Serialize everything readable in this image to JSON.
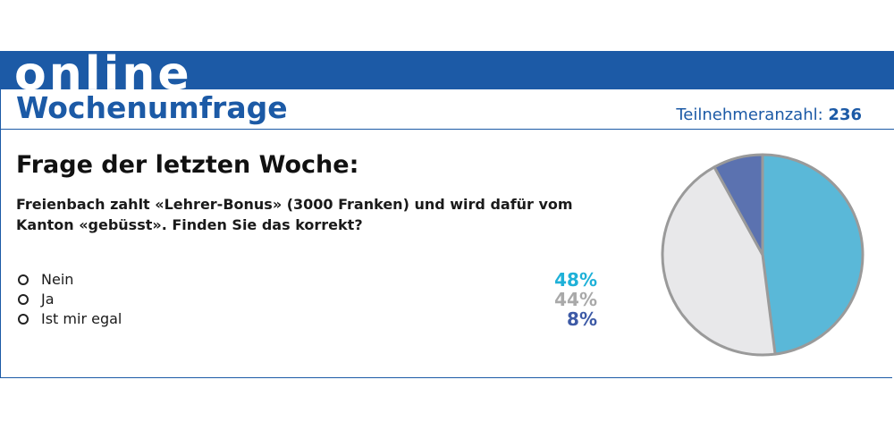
{
  "header": {
    "brand": "online",
    "title": "Wochenumfrage",
    "participants_label": "Teilnehmeranzahl:",
    "participants_count": "236"
  },
  "poll": {
    "heading": "Frage der letzten Woche:",
    "question": "Freienbach zahlt «Lehrer-Bonus» (3000 Franken) und wird dafür vom Kanton «gebüsst». Finden Sie das korrekt?",
    "options": [
      {
        "label": "Nein",
        "percent": "48%",
        "color": "#1fb1d8"
      },
      {
        "label": "Ja",
        "percent": "44%",
        "color": "#a9a9a9"
      },
      {
        "label": "Ist mir egal",
        "percent": "8%",
        "color": "#3d5aa6"
      }
    ]
  },
  "chart_data": {
    "type": "pie",
    "categories": [
      "Nein",
      "Ja",
      "Ist mir egal"
    ],
    "values": [
      48,
      44,
      8
    ],
    "colors": [
      "#5ab8d8",
      "#e8e8ea",
      "#5b72b0"
    ],
    "border_color": "#9a9a9a",
    "legend": "left"
  }
}
